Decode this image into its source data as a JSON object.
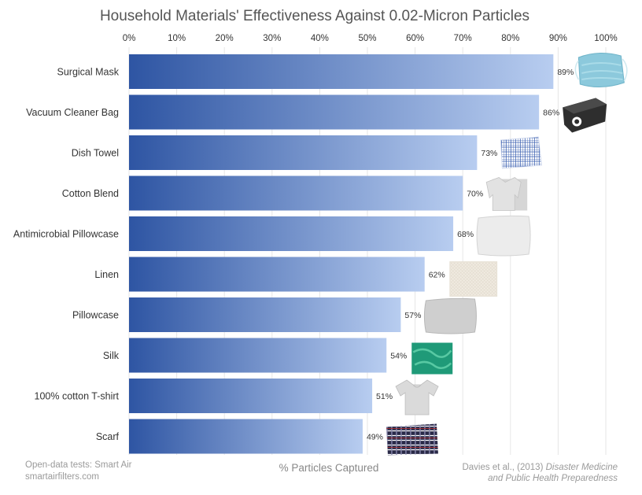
{
  "chart_data": {
    "type": "bar",
    "orientation": "horizontal",
    "title": "Household Materials' Effectiveness Against 0.02-Micron Particles",
    "xlabel": "% Particles Captured",
    "ylabel": "",
    "xlim": [
      0,
      100
    ],
    "x_ticks": [
      "0%",
      "10%",
      "20%",
      "30%",
      "40%",
      "50%",
      "60%",
      "70%",
      "80%",
      "90%",
      "100%"
    ],
    "x_tick_position": "top",
    "grid": "vertical",
    "categories": [
      "Surgical Mask",
      "Vacuum Cleaner Bag",
      "Dish Towel",
      "Cotton Blend",
      "Antimicrobial Pillowcase",
      "Linen",
      "Pillowcase",
      "Silk",
      "100% cotton T-shirt",
      "Scarf"
    ],
    "values": [
      89,
      86,
      73,
      70,
      68,
      62,
      57,
      54,
      51,
      49
    ],
    "value_labels": [
      "89%",
      "86%",
      "73%",
      "70%",
      "68%",
      "62%",
      "57%",
      "54%",
      "51%",
      "49%"
    ],
    "bar_gradient": [
      "#2e55a3",
      "#b8cdf0"
    ],
    "item_images": [
      "surgical-mask",
      "vacuum-cleaner-bag",
      "dish-towel",
      "cotton-blend-shirt",
      "pillow",
      "linen-fabric",
      "pillowcase",
      "silk-fabric",
      "cotton-t-shirt",
      "plaid-scarf"
    ]
  },
  "footer": {
    "left_line1": "Open-data tests: Smart Air",
    "left_line2": "smartairfilters.com",
    "right_line1_plain": "Davies et al., (2013) ",
    "right_line1_italic": "Disaster Medicine",
    "right_line2_italic": "and Public Health Preparedness"
  }
}
